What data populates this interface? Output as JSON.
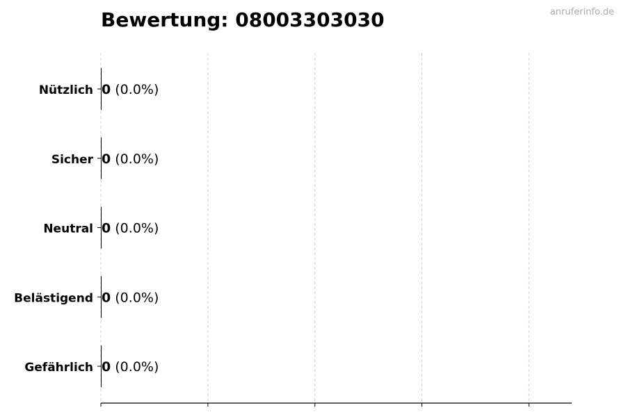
{
  "title": "Bewertung: 08003303030",
  "watermark": "anruferinfo.de",
  "chart_data": {
    "type": "bar",
    "orientation": "horizontal",
    "title": "Bewertung: 08003303030",
    "categories": [
      "Nützlich",
      "Sicher",
      "Neutral",
      "Belästigend",
      "Gefährlich"
    ],
    "values": [
      0,
      0,
      0,
      0,
      0
    ],
    "value_labels": [
      "0",
      "0",
      "0",
      "0",
      "0"
    ],
    "percent_labels": [
      "(0.0%)",
      "(0.0%)",
      "(0.0%)",
      "(0.0%)",
      "(0.0%)"
    ],
    "xlim": [
      0,
      4.4
    ],
    "x_ticks": [
      0,
      1,
      2,
      3,
      4
    ],
    "x_tick_labels_shown": false,
    "grid": "x, dashed",
    "bar_color": "#000000"
  }
}
